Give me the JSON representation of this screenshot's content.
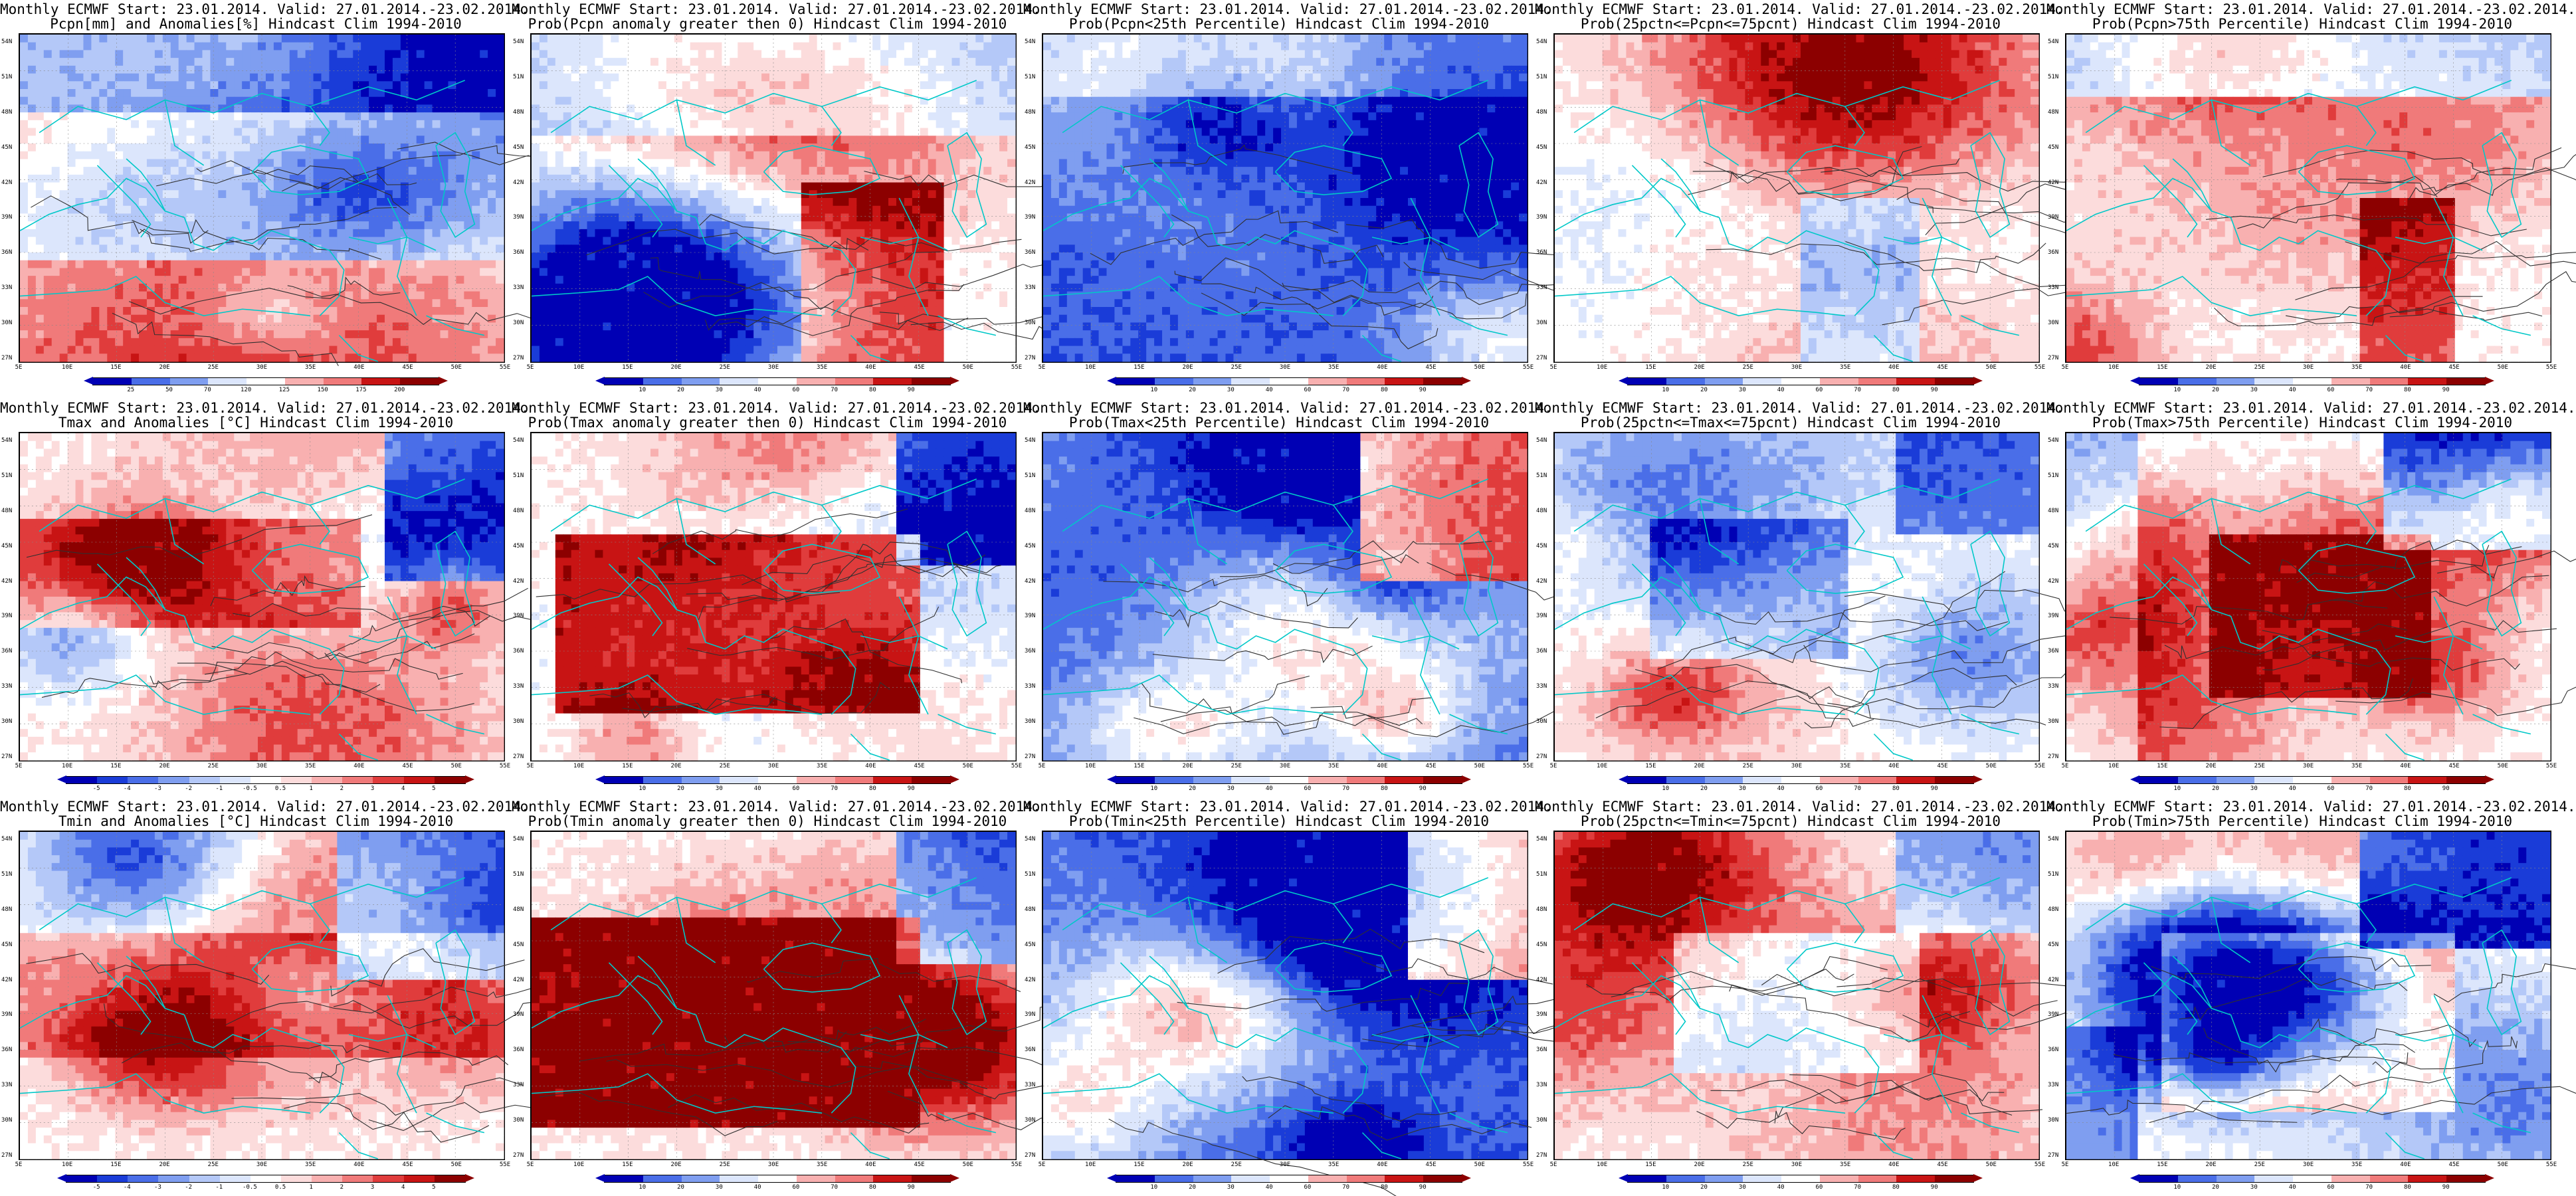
{
  "panels": [
    {
      "line1": "Monthly ECMWF Start: 23.01.2014. Valid: 27.01.2014.-23.02.2014.",
      "line2": "Pcpn[mm] and Anomalies[%] Hindcast Clim 1994-2010",
      "scheme": "anom",
      "ticks": [
        "25",
        "50",
        "70",
        "120",
        "125",
        "150",
        "175",
        "200"
      ]
    },
    {
      "line1": "Monthly ECMWF Start: 23.01.2014. Valid: 27.01.2014.-23.02.2014.",
      "line2": "Prob(Pcpn anomaly greater then 0) Hindcast Clim 1994-2010",
      "scheme": "prob",
      "ticks": [
        "10",
        "20",
        "30",
        "40",
        "60",
        "70",
        "80",
        "90"
      ]
    },
    {
      "line1": "Monthly ECMWF Start: 23.01.2014. Valid: 27.01.2014.-23.02.2014.",
      "line2": "Prob(Pcpn<25th Percentile) Hindcast Clim 1994-2010",
      "scheme": "prob",
      "ticks": [
        "10",
        "20",
        "30",
        "40",
        "60",
        "70",
        "80",
        "90"
      ]
    },
    {
      "line1": "Monthly ECMWF Start: 23.01.2014. Valid: 27.01.2014.-23.02.2014.",
      "line2": "Prob(25pctn<=Pcpn<=75pcnt) Hindcast Clim 1994-2010",
      "scheme": "prob",
      "ticks": [
        "10",
        "20",
        "30",
        "40",
        "60",
        "70",
        "80",
        "90"
      ]
    },
    {
      "line1": "Monthly ECMWF Start: 23.01.2014. Valid: 27.01.2014.-23.02.2014.",
      "line2": "Prob(Pcpn>75th Percentile) Hindcast Clim 1994-2010",
      "scheme": "prob",
      "ticks": [
        "10",
        "20",
        "30",
        "40",
        "60",
        "70",
        "80",
        "90"
      ]
    },
    {
      "line1": "Monthly ECMWF Start: 23.01.2014. Valid: 27.01.2014.-23.02.2014.",
      "line2": "Tmax and Anomalies [°C] Hindcast Clim 1994-2010",
      "scheme": "temp",
      "ticks": [
        "-5",
        "-4",
        "-3",
        "-2",
        "-1",
        "-0.5",
        "0.5",
        "1",
        "2",
        "3",
        "4",
        "5"
      ]
    },
    {
      "line1": "Monthly ECMWF Start: 23.01.2014. Valid: 27.01.2014.-23.02.2014.",
      "line2": "Prob(Tmax anomaly greater then 0) Hindcast Clim 1994-2010",
      "scheme": "prob",
      "ticks": [
        "10",
        "20",
        "30",
        "40",
        "60",
        "70",
        "80",
        "90"
      ]
    },
    {
      "line1": "Monthly ECMWF Start: 23.01.2014. Valid: 27.01.2014.-23.02.2014.",
      "line2": "Prob(Tmax<25th Percentile) Hindcast Clim 1994-2010",
      "scheme": "prob",
      "ticks": [
        "10",
        "20",
        "30",
        "40",
        "60",
        "70",
        "80",
        "90"
      ]
    },
    {
      "line1": "Monthly ECMWF Start: 23.01.2014. Valid: 27.01.2014.-23.02.2014.",
      "line2": "Prob(25pctn<=Tmax<=75pcnt) Hindcast Clim 1994-2010",
      "scheme": "prob",
      "ticks": [
        "10",
        "20",
        "30",
        "40",
        "60",
        "70",
        "80",
        "90"
      ]
    },
    {
      "line1": "Monthly ECMWF Start: 23.01.2014. Valid: 27.01.2014.-23.02.2014.",
      "line2": "Prob(Tmax>75th Percentile) Hindcast Clim 1994-2010",
      "scheme": "prob",
      "ticks": [
        "10",
        "20",
        "30",
        "40",
        "60",
        "70",
        "80",
        "90"
      ]
    },
    {
      "line1": "Monthly ECMWF Start: 23.01.2014. Valid: 27.01.2014.-23.02.2014.",
      "line2": "Tmin and Anomalies [°C] Hindcast Clim 1994-2010",
      "scheme": "temp",
      "ticks": [
        "-5",
        "-4",
        "-3",
        "-2",
        "-1",
        "-0.5",
        "0.5",
        "1",
        "2",
        "3",
        "4",
        "5"
      ]
    },
    {
      "line1": "Monthly ECMWF Start: 23.01.2014. Valid: 27.01.2014.-23.02.2014.",
      "line2": "Prob(Tmin anomaly greater then 0) Hindcast Clim 1994-2010",
      "scheme": "prob",
      "ticks": [
        "10",
        "20",
        "30",
        "40",
        "60",
        "70",
        "80",
        "90"
      ]
    },
    {
      "line1": "Monthly ECMWF Start: 23.01.2014. Valid: 27.01.2014.-23.02.2014.",
      "line2": "Prob(Tmin<25th Percentile) Hindcast Clim 1994-2010",
      "scheme": "prob",
      "ticks": [
        "10",
        "20",
        "30",
        "40",
        "60",
        "70",
        "80",
        "90"
      ]
    },
    {
      "line1": "Monthly ECMWF Start: 23.01.2014. Valid: 27.01.2014.-23.02.2014.",
      "line2": "Prob(25pctn<=Tmin<=75pcnt) Hindcast Clim 1994-2010",
      "scheme": "prob",
      "ticks": [
        "10",
        "20",
        "30",
        "40",
        "60",
        "70",
        "80",
        "90"
      ]
    },
    {
      "line1": "Monthly ECMWF Start: 23.01.2014. Valid: 27.01.2014.-23.02.2014.",
      "line2": "Prob(Tmin>75th Percentile) Hindcast Clim 1994-2010",
      "scheme": "prob",
      "ticks": [
        "10",
        "20",
        "30",
        "40",
        "60",
        "70",
        "80",
        "90"
      ]
    }
  ],
  "lat_labels": [
    "54N",
    "51N",
    "48N",
    "45N",
    "42N",
    "39N",
    "36N",
    "33N",
    "30N",
    "27N"
  ],
  "lon_labels": [
    "5E",
    "10E",
    "15E",
    "20E",
    "25E",
    "30E",
    "35E",
    "40E",
    "45E",
    "50E",
    "55E"
  ],
  "colors": {
    "blue_scale": [
      "#0000b4",
      "#1a3cd8",
      "#4a6ee8",
      "#7f9ef0",
      "#b4c8f8",
      "#dce6fc"
    ],
    "red_scale": [
      "#fcdcdc",
      "#f8b0b0",
      "#f07a7a",
      "#e03c3c",
      "#c81414",
      "#8c0000"
    ],
    "coast": "#00c8c8",
    "contour": "#303030"
  }
}
